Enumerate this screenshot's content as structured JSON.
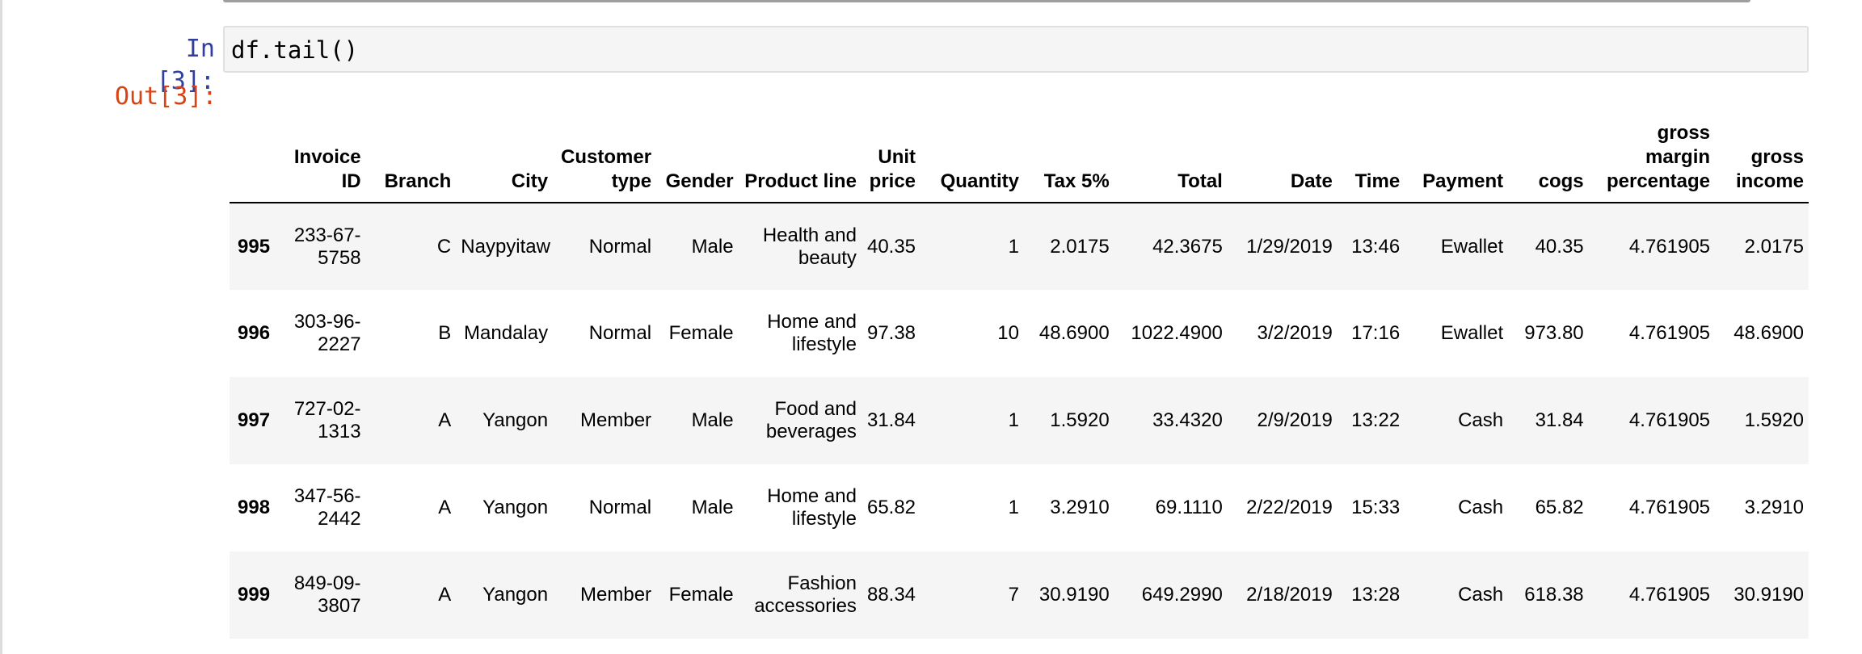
{
  "notebook": {
    "in_prompt": "In [3]:",
    "out_prompt": "Out[3]:",
    "code": "df.tail()"
  },
  "table": {
    "columns": [
      "",
      "Invoice ID",
      "Branch",
      "City",
      "Customer type",
      "Gender",
      "Product line",
      "Unit price",
      "Quantity",
      "Tax 5%",
      "Total",
      "Date",
      "Time",
      "Payment",
      "cogs",
      "gross margin percentage",
      "gross income"
    ],
    "rows": [
      [
        "995",
        "233-67-5758",
        "C",
        "Naypyitaw",
        "Normal",
        "Male",
        "Health and beauty",
        "40.35",
        "1",
        "2.0175",
        "42.3675",
        "1/29/2019",
        "13:46",
        "Ewallet",
        "40.35",
        "4.761905",
        "2.0175"
      ],
      [
        "996",
        "303-96-2227",
        "B",
        "Mandalay",
        "Normal",
        "Female",
        "Home and lifestyle",
        "97.38",
        "10",
        "48.6900",
        "1022.4900",
        "3/2/2019",
        "17:16",
        "Ewallet",
        "973.80",
        "4.761905",
        "48.6900"
      ],
      [
        "997",
        "727-02-1313",
        "A",
        "Yangon",
        "Member",
        "Male",
        "Food and beverages",
        "31.84",
        "1",
        "1.5920",
        "33.4320",
        "2/9/2019",
        "13:22",
        "Cash",
        "31.84",
        "4.761905",
        "1.5920"
      ],
      [
        "998",
        "347-56-2442",
        "A",
        "Yangon",
        "Normal",
        "Male",
        "Home and lifestyle",
        "65.82",
        "1",
        "3.2910",
        "69.1110",
        "2/22/2019",
        "15:33",
        "Cash",
        "65.82",
        "4.761905",
        "3.2910"
      ],
      [
        "999",
        "849-09-3807",
        "A",
        "Yangon",
        "Member",
        "Female",
        "Fashion accessories",
        "88.34",
        "7",
        "30.9190",
        "649.2990",
        "2/18/2019",
        "13:28",
        "Cash",
        "618.38",
        "4.761905",
        "30.9190"
      ]
    ]
  }
}
